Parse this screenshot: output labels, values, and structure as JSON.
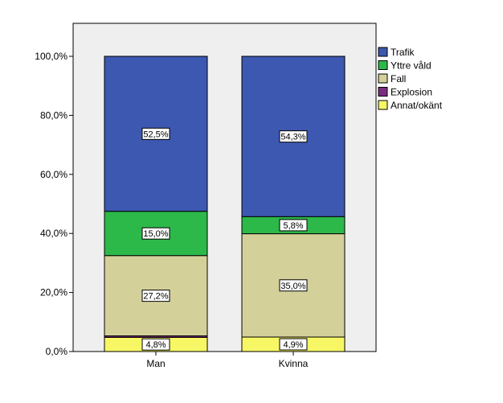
{
  "chart_data": {
    "type": "bar",
    "stacked": true,
    "categories": [
      "Man",
      "Kvinna"
    ],
    "series": [
      {
        "name": "Annat/okänt",
        "color": "#f7f766",
        "values": [
          4.8,
          4.9
        ],
        "labels": [
          "4,8%",
          "4,9%"
        ]
      },
      {
        "name": "Explosion",
        "color": "#7b2d82",
        "values": [
          0.5,
          0.0
        ],
        "labels": [
          "",
          ""
        ]
      },
      {
        "name": "Fall",
        "color": "#d4d09a",
        "values": [
          27.2,
          35.0
        ],
        "labels": [
          "27,2%",
          "35,0%"
        ]
      },
      {
        "name": "Yttre våld",
        "color": "#2db84a",
        "values": [
          15.0,
          5.8
        ],
        "labels": [
          "15,0%",
          "5,8%"
        ]
      },
      {
        "name": "Trafik",
        "color": "#3d58b0",
        "values": [
          52.5,
          54.3
        ],
        "labels": [
          "52,5%",
          "54,3%"
        ]
      }
    ],
    "legend": [
      "Trafik",
      "Yttre våld",
      "Fall",
      "Explosion",
      "Annat/okänt"
    ],
    "legend_position": "right",
    "yticks": [
      "0,0%",
      "20,0%",
      "40,0%",
      "60,0%",
      "80,0%",
      "100,0%"
    ],
    "ylim": [
      0,
      100
    ],
    "title": "",
    "xlabel": "",
    "ylabel": "",
    "grid": false
  }
}
